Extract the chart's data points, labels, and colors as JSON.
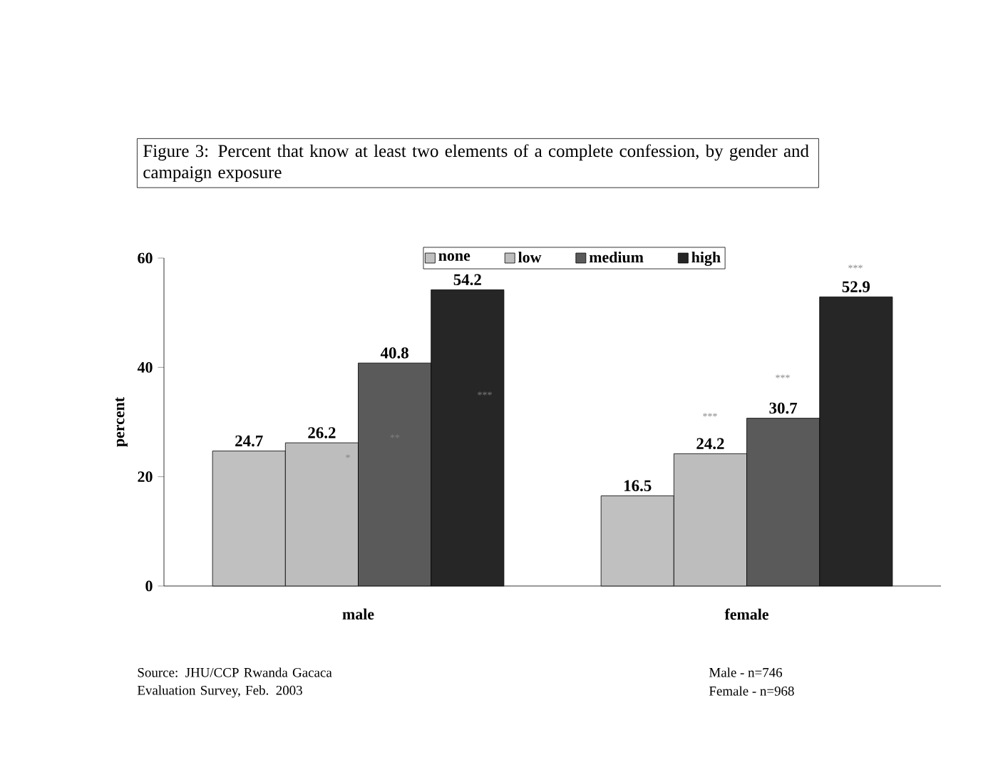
{
  "chart_data": {
    "type": "bar",
    "title": "Figure 3: Percent that know at least two elements of a complete confession, by gender and campaign exposure",
    "ylabel": "percent",
    "categories": [
      "male",
      "female"
    ],
    "series": [
      {
        "name": "none",
        "color": "#c0c0c0",
        "values": [
          24.7,
          16.5
        ]
      },
      {
        "name": "low",
        "color": "#bdbdbd",
        "values": [
          26.2,
          24.2
        ]
      },
      {
        "name": "medium",
        "color": "#5a5a5a",
        "values": [
          40.8,
          30.7
        ]
      },
      {
        "name": "high",
        "color": "#262626",
        "values": [
          54.2,
          52.9
        ]
      }
    ],
    "ylim": [
      0,
      60
    ],
    "yticks": [
      0,
      20,
      40,
      60
    ],
    "data_labels": true,
    "legend": "top",
    "grid": false,
    "annotations": [
      "Source: JHU/CCP Rwanda Gacaca Evaluation Survey, Feb. 2003",
      "Male - n=746",
      "Female - n=968",
      "*",
      "**",
      "***",
      "***",
      "***",
      "***"
    ]
  }
}
